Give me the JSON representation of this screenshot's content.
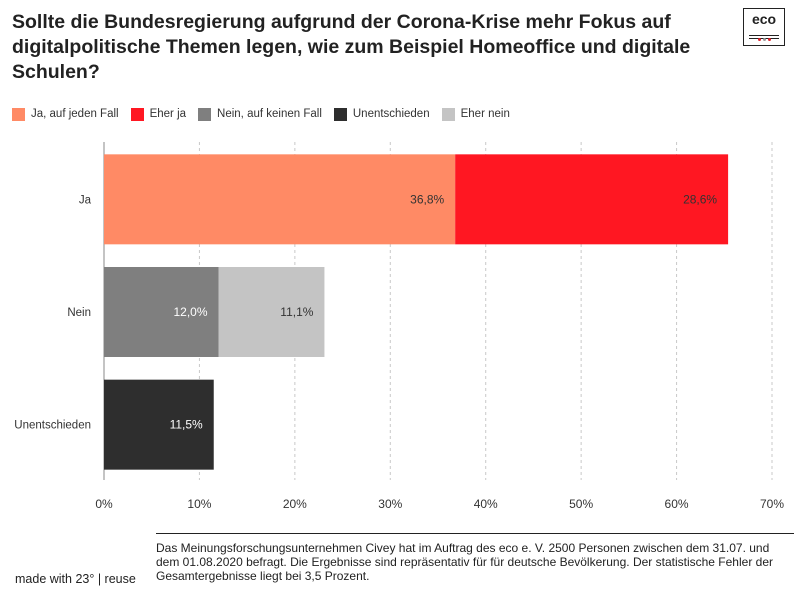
{
  "header": {
    "title": "Sollte die Bundesregierung aufgrund der Corona-Krise mehr Fokus auf digitalpolitische Themen legen, wie zum Beispiel Homeoffice und digitale Schulen?",
    "logo_text": "eco"
  },
  "footer": {
    "note": "Das Meinungsforschungsunternehmen Civey hat im Auftrag des eco e. V. 2500 Personen zwischen dem 31.07. und dem 01.08.2020 befragt. Die Ergebnisse sind repräsentativ für für deutsche Bevölkerung. Der statistische Fehler der Gesamtergebnisse liegt bei 3,5 Prozent.",
    "made_with": "made with 23° | reuse"
  },
  "chart_data": {
    "type": "bar",
    "orientation": "horizontal",
    "stacked": true,
    "title": "Sollte die Bundesregierung aufgrund der Corona-Krise mehr Fokus auf digitalpolitische Themen legen, wie zum Beispiel Homeoffice und digitale Schulen?",
    "legend_position": "top-left",
    "legend": [
      {
        "name": "Ja, auf jeden Fall",
        "color": "#ff8a65"
      },
      {
        "name": "Eher ja",
        "color": "#ff1722"
      },
      {
        "name": "Nein, auf keinen Fall",
        "color": "#7f7f7f"
      },
      {
        "name": "Unentschieden",
        "color": "#2e2e2e"
      },
      {
        "name": "Eher nein",
        "color": "#c4c4c4"
      }
    ],
    "categories": [
      "Ja",
      "Nein",
      "Unentschieden"
    ],
    "bars": [
      {
        "category": "Ja",
        "segments": [
          {
            "series": "Ja, auf jeden Fall",
            "value": 36.8,
            "label": "36,8%",
            "color": "#ff8a65",
            "label_color": "#333333"
          },
          {
            "series": "Eher ja",
            "value": 28.6,
            "label": "28,6%",
            "color": "#ff1722",
            "label_color": "#333333"
          }
        ]
      },
      {
        "category": "Nein",
        "segments": [
          {
            "series": "Nein, auf keinen Fall",
            "value": 12.0,
            "label": "12,0%",
            "color": "#7f7f7f",
            "label_color": "#ffffff"
          },
          {
            "series": "Eher nein",
            "value": 11.1,
            "label": "11,1%",
            "color": "#c4c4c4",
            "label_color": "#333333"
          }
        ]
      },
      {
        "category": "Unentschieden",
        "segments": [
          {
            "series": "Unentschieden",
            "value": 11.5,
            "label": "11,5%",
            "color": "#2e2e2e",
            "label_color": "#ffffff"
          }
        ]
      }
    ],
    "xlim": [
      0,
      70
    ],
    "xticks": [
      0,
      10,
      20,
      30,
      40,
      50,
      60,
      70
    ],
    "xtick_labels": [
      "0%",
      "10%",
      "20%",
      "30%",
      "40%",
      "50%",
      "60%",
      "70%"
    ],
    "grid": true,
    "xlabel": "",
    "ylabel": ""
  }
}
